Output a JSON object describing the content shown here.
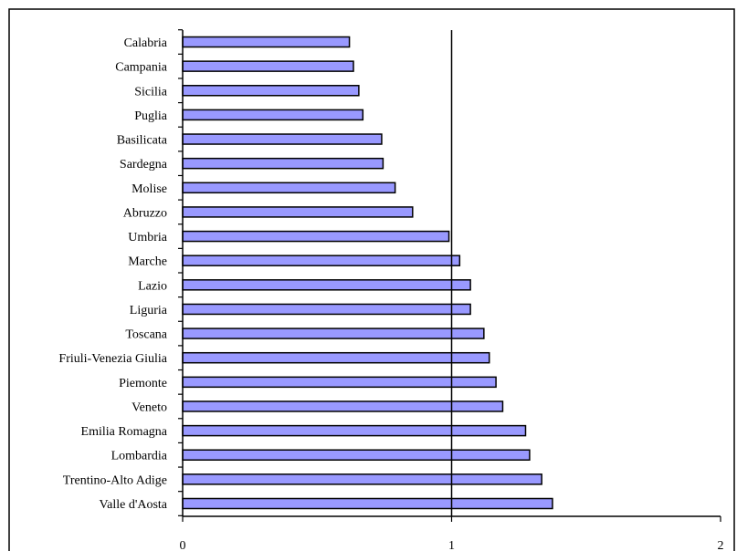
{
  "chart_data": {
    "type": "bar",
    "orientation": "horizontal",
    "title": "",
    "xlabel": "",
    "ylabel": "",
    "categories": [
      "Calabria",
      "Campania",
      "Sicilia",
      "Puglia",
      "Basilicata",
      "Sardegna",
      "Molise",
      "Abruzzo",
      "Umbria",
      "Marche",
      "Lazio",
      "Liguria",
      "Toscana",
      "Friuli-Venezia Giulia",
      "Piemonte",
      "Veneto",
      "Emilia Romagna",
      "Lombardia",
      "Trentino-Alto Adige",
      "Valle d'Aosta"
    ],
    "values": [
      0.62,
      0.635,
      0.655,
      0.67,
      0.74,
      0.745,
      0.79,
      0.855,
      0.99,
      1.03,
      1.07,
      1.07,
      1.12,
      1.14,
      1.165,
      1.19,
      1.275,
      1.29,
      1.335,
      1.375
    ],
    "xlim": [
      0,
      2
    ],
    "xticks": [
      "0",
      "1",
      "2"
    ],
    "reference_line": 1,
    "grid": false,
    "legend": "none",
    "bar_color": "#9999ff",
    "bar_edge_color": "#000000"
  }
}
